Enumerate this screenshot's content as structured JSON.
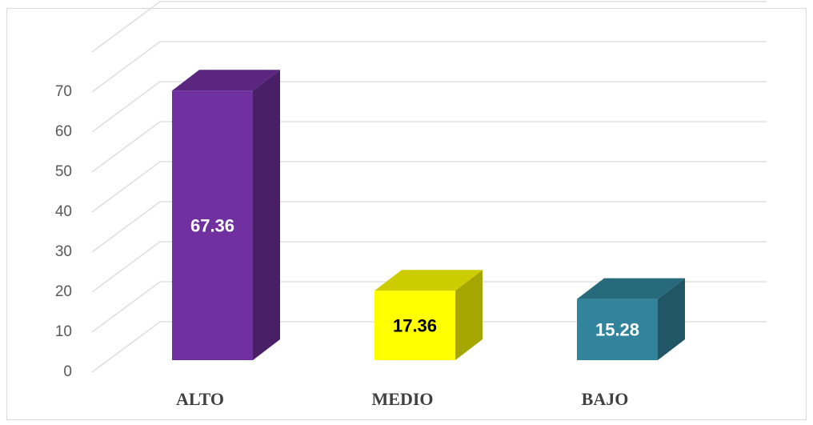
{
  "chart_data": {
    "type": "bar3d",
    "categories": [
      "ALTO",
      "MEDIO",
      "BAJO"
    ],
    "values": [
      67.36,
      17.36,
      15.28
    ],
    "colors": [
      "#7030a0",
      "#ffff00",
      "#31849b"
    ],
    "ylim": [
      0,
      80
    ],
    "yticks": [
      0,
      10,
      20,
      30,
      40,
      50,
      60,
      70
    ],
    "grid": true
  }
}
